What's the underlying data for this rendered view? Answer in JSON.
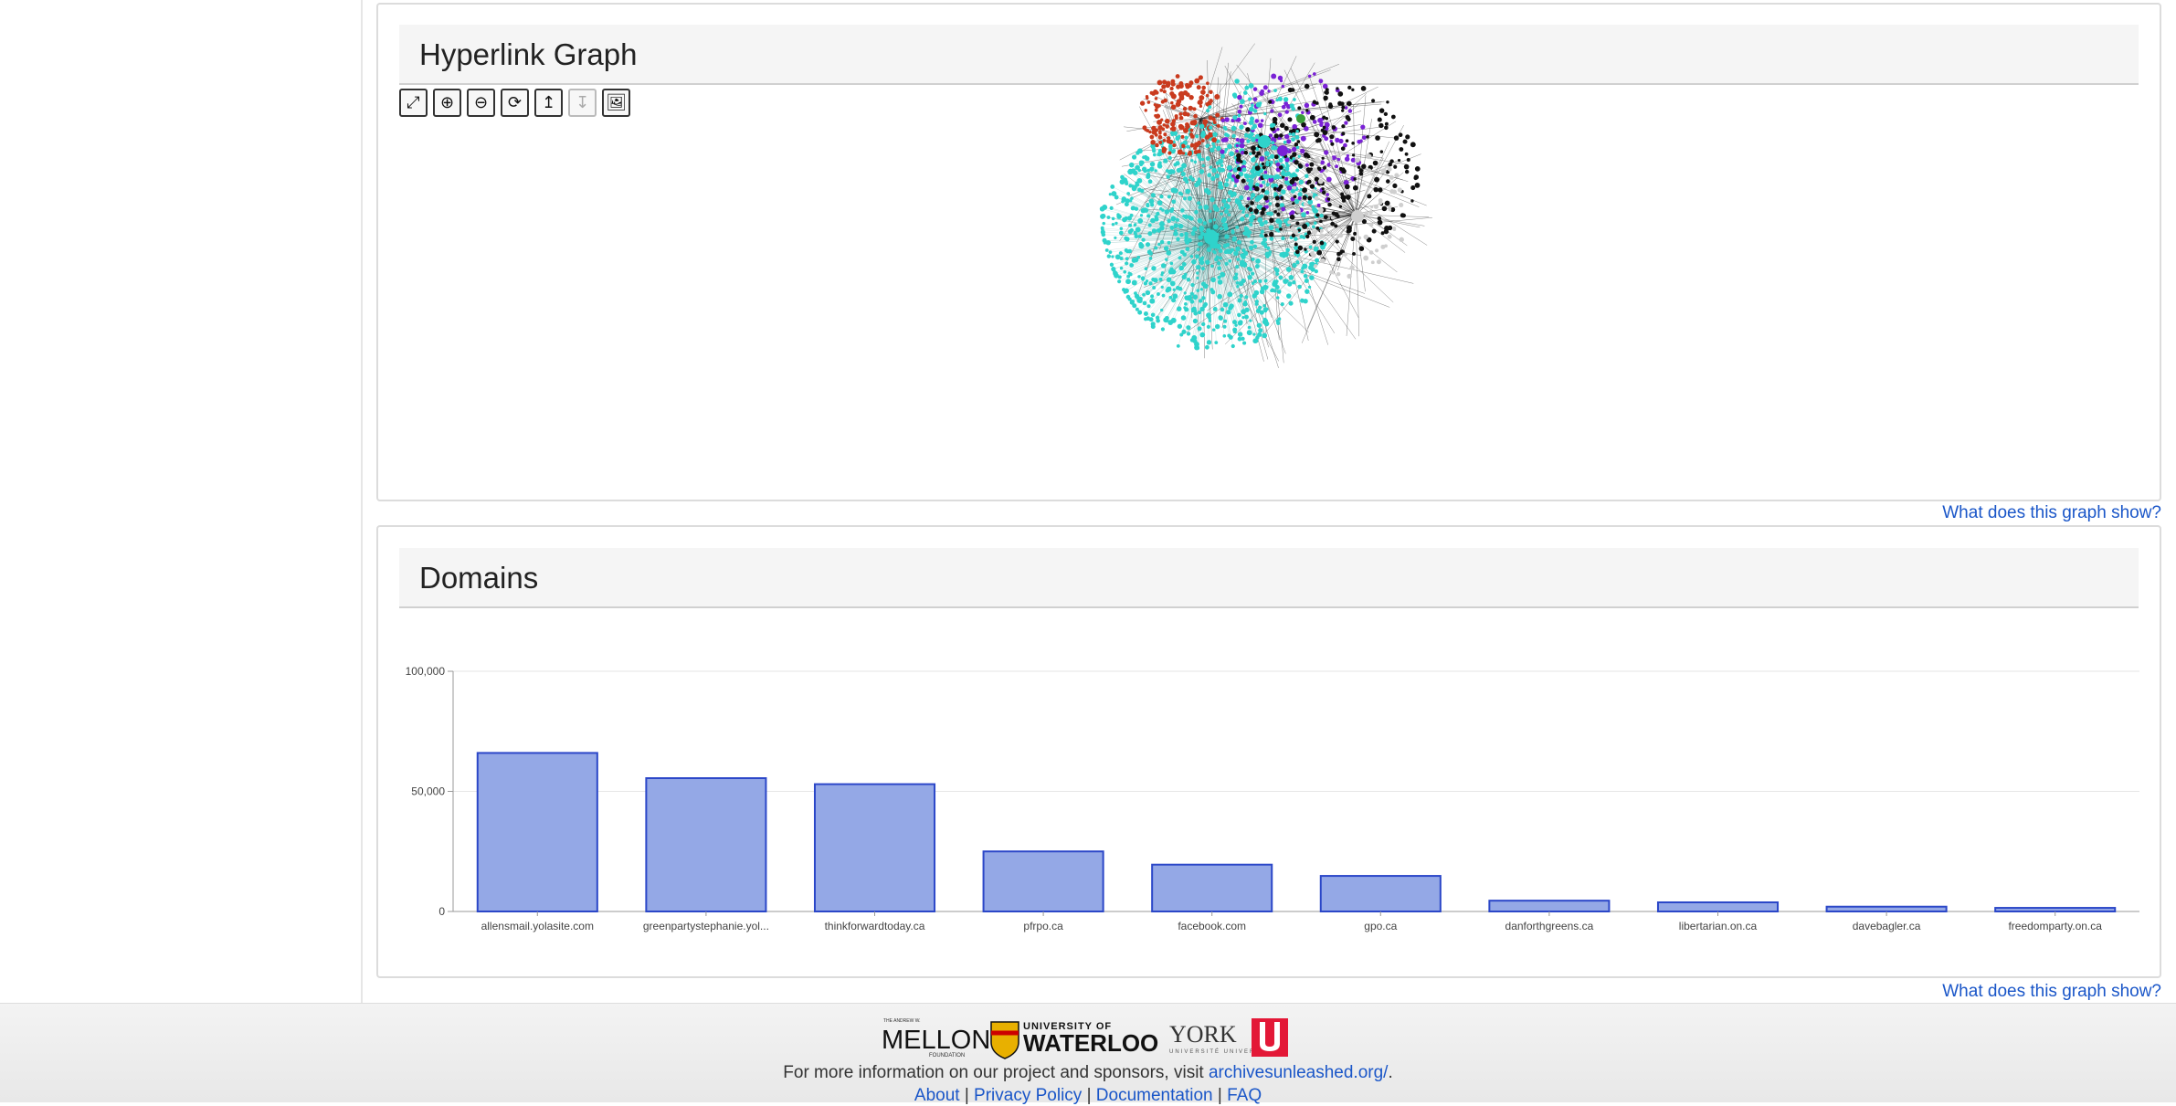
{
  "graph_panel": {
    "title": "Hyperlink Graph",
    "toolbar": [
      {
        "icon": "expand-icon",
        "glyph": "⤢"
      },
      {
        "icon": "zoom-in-icon",
        "glyph": "⊕"
      },
      {
        "icon": "zoom-out-icon",
        "glyph": "⊖"
      },
      {
        "icon": "refresh-icon",
        "glyph": "⟳"
      },
      {
        "icon": "arrow-up-icon",
        "glyph": "↥"
      },
      {
        "icon": "arrow-down-icon",
        "glyph": "↧"
      },
      {
        "icon": "image-icon",
        "glyph": "🖼"
      }
    ],
    "help_link": "What does this graph show?",
    "node_colors": [
      "#2fd3cb",
      "#c93a1e",
      "#7a22d6",
      "#111111",
      "#cfcfcf",
      "#3a9e3a"
    ]
  },
  "domains_panel": {
    "title": "Domains",
    "help_link": "What does this graph show?"
  },
  "chart_data": {
    "type": "bar",
    "title": "",
    "xlabel": "",
    "ylabel": "",
    "ylim": [
      0,
      100000
    ],
    "yticks": [
      "0",
      "50,000",
      "100,000"
    ],
    "categories": [
      "allensmail.yolasite.com",
      "greenpartystephanie.yol...",
      "thinkforwardtoday.ca",
      "pfrpo.ca",
      "facebook.com",
      "gpo.ca",
      "danforthgreens.ca",
      "libertarian.on.ca",
      "davebagler.ca",
      "freedomparty.on.ca"
    ],
    "values": [
      66000,
      55500,
      53000,
      25000,
      19500,
      14800,
      4500,
      3800,
      2000,
      1500
    ],
    "grid": true,
    "bar_color": "#94a8e6",
    "bar_border": "#2b47c8"
  },
  "footer": {
    "sponsors": {
      "mellon_small": "THE ANDREW W.",
      "mellon": "MELLON",
      "mellon_sub": "FOUNDATION",
      "waterloo_top": "UNIVERSITY OF",
      "waterloo": "WATERLOO",
      "york": "YORK",
      "york_sub": "UNIVERSITÉ UNIVERSITY"
    },
    "info_text": "For more information on our project and sponsors, visit",
    "info_link": "archivesunleashed.org/",
    "info_end": ".",
    "links": [
      "About",
      "Privacy Policy",
      "Documentation",
      "FAQ"
    ]
  }
}
